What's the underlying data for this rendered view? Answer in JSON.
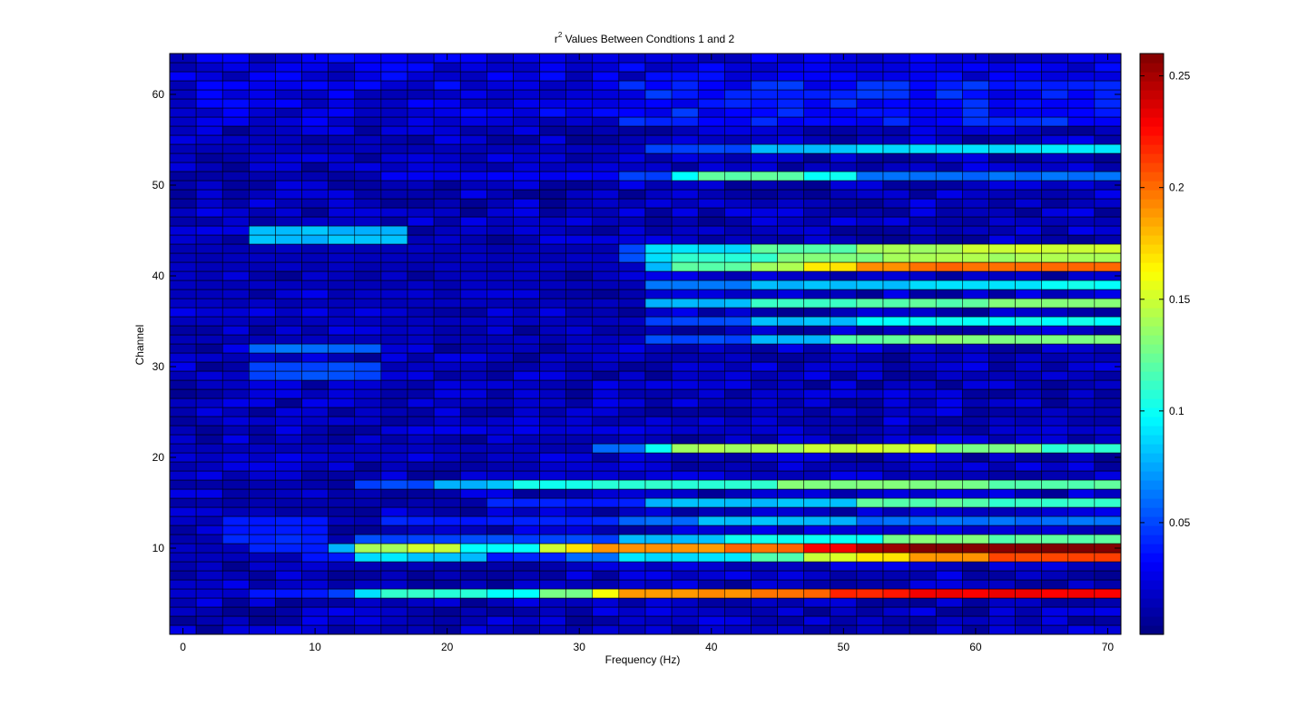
{
  "chart_data": {
    "type": "heatmap",
    "title": "r",
    "title_sup": "2",
    "title_rest": " Values Between Condtions 1 and 2",
    "xlabel": "Frequency (Hz)",
    "ylabel": "Channel",
    "xlim": [
      -1,
      71
    ],
    "ylim": [
      0.5,
      64.5
    ],
    "x_ticks": [
      0,
      10,
      20,
      30,
      40,
      50,
      60,
      70
    ],
    "y_ticks": [
      10,
      20,
      30,
      40,
      50,
      60
    ],
    "x_bins": [
      0,
      2,
      4,
      6,
      8,
      10,
      12,
      14,
      16,
      18,
      20,
      22,
      24,
      26,
      28,
      30,
      32,
      34,
      36,
      38,
      40,
      42,
      44,
      46,
      48,
      50,
      52,
      54,
      56,
      58,
      60,
      62,
      64,
      66,
      68,
      70
    ],
    "y_bins_count": 64,
    "colormap": "jet",
    "clim": [
      0,
      0.26
    ],
    "colorbar_ticks": [
      0.05,
      0.1,
      0.15,
      0.2,
      0.25
    ],
    "colorbar_tick_labels": [
      "0.05",
      "0.1",
      "0.15",
      "0.2",
      "0.25"
    ],
    "grid": false,
    "cell_edges": true,
    "rows": {
      "5": [
        [
          0,
          0.02
        ],
        [
          6,
          0.04
        ],
        [
          12,
          0.05
        ],
        [
          14,
          0.09
        ],
        [
          16,
          0.11
        ],
        [
          24,
          0.1
        ],
        [
          28,
          0.13
        ],
        [
          32,
          0.16
        ],
        [
          34,
          0.19
        ],
        [
          44,
          0.2
        ],
        [
          50,
          0.22
        ],
        [
          56,
          0.23
        ]
      ],
      "9": [
        [
          0,
          0.015
        ],
        [
          10,
          0.04
        ],
        [
          14,
          0.09
        ],
        [
          18,
          0.08
        ],
        [
          24,
          0.04
        ],
        [
          30,
          0.06
        ],
        [
          34,
          0.09
        ],
        [
          44,
          0.12
        ],
        [
          48,
          0.15
        ],
        [
          52,
          0.17
        ],
        [
          56,
          0.19
        ],
        [
          62,
          0.21
        ]
      ],
      "10": [
        [
          0,
          0.015
        ],
        [
          6,
          0.04
        ],
        [
          12,
          0.08
        ],
        [
          14,
          0.14
        ],
        [
          18,
          0.15
        ],
        [
          22,
          0.1
        ],
        [
          28,
          0.15
        ],
        [
          30,
          0.17
        ],
        [
          32,
          0.19
        ],
        [
          42,
          0.2
        ],
        [
          48,
          0.23
        ],
        [
          52,
          0.25
        ],
        [
          56,
          0.26
        ]
      ],
      "11": [
        [
          0,
          0.01
        ],
        [
          14,
          0.05
        ],
        [
          34,
          0.08
        ],
        [
          42,
          0.1
        ],
        [
          54,
          0.13
        ],
        [
          62,
          0.12
        ]
      ],
      "13": [
        [
          0,
          0.015
        ],
        [
          16,
          0.04
        ],
        [
          34,
          0.06
        ],
        [
          40,
          0.08
        ],
        [
          52,
          0.06
        ]
      ],
      "15": [
        [
          0,
          0.01
        ],
        [
          24,
          0.04
        ],
        [
          36,
          0.08
        ],
        [
          52,
          0.12
        ],
        [
          62,
          0.11
        ]
      ],
      "17": [
        [
          0,
          0.01
        ],
        [
          14,
          0.05
        ],
        [
          20,
          0.08
        ],
        [
          26,
          0.1
        ],
        [
          32,
          0.11
        ],
        [
          46,
          0.13
        ],
        [
          62,
          0.12
        ]
      ],
      "21": [
        [
          0,
          0.015
        ],
        [
          32,
          0.06
        ],
        [
          36,
          0.1
        ],
        [
          38,
          0.14
        ],
        [
          48,
          0.15
        ],
        [
          58,
          0.13
        ],
        [
          66,
          0.11
        ]
      ],
      "33": [
        [
          0,
          0.015
        ],
        [
          36,
          0.05
        ],
        [
          44,
          0.08
        ],
        [
          50,
          0.12
        ],
        [
          56,
          0.13
        ]
      ],
      "35": [
        [
          0,
          0.015
        ],
        [
          36,
          0.05
        ],
        [
          44,
          0.08
        ],
        [
          52,
          0.1
        ]
      ],
      "37": [
        [
          0,
          0.015
        ],
        [
          36,
          0.08
        ],
        [
          44,
          0.11
        ],
        [
          52,
          0.12
        ],
        [
          62,
          0.13
        ]
      ],
      "39": [
        [
          0,
          0.015
        ],
        [
          36,
          0.06
        ],
        [
          44,
          0.08
        ],
        [
          56,
          0.09
        ],
        [
          66,
          0.1
        ]
      ],
      "41": [
        [
          0,
          0.015
        ],
        [
          36,
          0.08
        ],
        [
          38,
          0.12
        ],
        [
          44,
          0.14
        ],
        [
          48,
          0.17
        ],
        [
          52,
          0.19
        ],
        [
          56,
          0.2
        ]
      ],
      "42": [
        [
          0,
          0.015
        ],
        [
          34,
          0.05
        ],
        [
          36,
          0.09
        ],
        [
          38,
          0.11
        ],
        [
          46,
          0.13
        ],
        [
          54,
          0.14
        ]
      ],
      "43": [
        [
          0,
          0.015
        ],
        [
          34,
          0.05
        ],
        [
          36,
          0.09
        ],
        [
          44,
          0.12
        ],
        [
          52,
          0.14
        ],
        [
          60,
          0.15
        ]
      ],
      "51": [
        [
          0,
          0.01
        ],
        [
          16,
          0.03
        ],
        [
          34,
          0.05
        ],
        [
          38,
          0.1
        ],
        [
          40,
          0.12
        ],
        [
          48,
          0.1
        ],
        [
          52,
          0.06
        ]
      ],
      "54": [
        [
          0,
          0.015
        ],
        [
          36,
          0.05
        ],
        [
          44,
          0.08
        ],
        [
          52,
          0.09
        ]
      ]
    },
    "left_patches": [
      {
        "rows": [
          44,
          45
        ],
        "x_from": 6,
        "x_to": 16,
        "value": 0.08
      },
      {
        "rows": [
          32
        ],
        "x_from": 6,
        "x_to": 14,
        "value": 0.06
      },
      {
        "rows": [
          29,
          30
        ],
        "x_from": 6,
        "x_to": 14,
        "value": 0.05
      },
      {
        "rows": [
          11,
          12,
          13
        ],
        "x_from": 4,
        "x_to": 10,
        "value": 0.04
      }
    ]
  }
}
